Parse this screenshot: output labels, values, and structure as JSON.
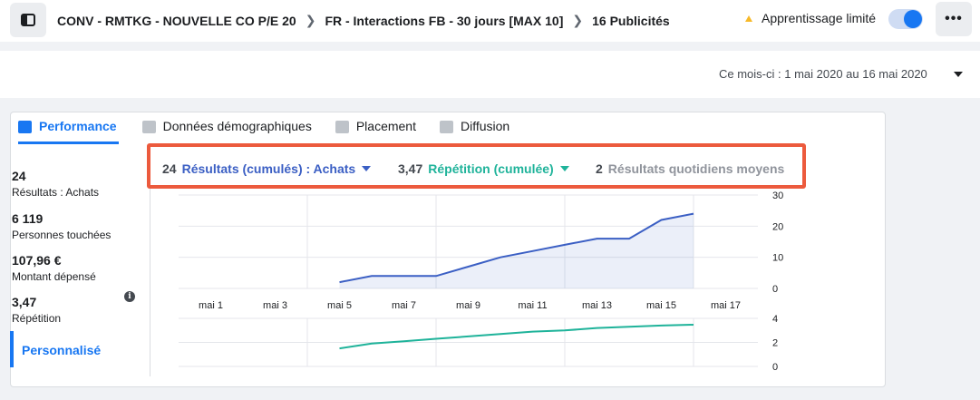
{
  "breadcrumb": {
    "campaign": "CONV - RMTKG - NOUVELLE CO P/E 20",
    "adset": "FR - Interactions FB - 30 jours [MAX 10]",
    "ads": "16 Publicités"
  },
  "header": {
    "status": "Apprentissage limité"
  },
  "date_range": "Ce mois-ci : 1 mai 2020 au 16 mai 2020",
  "tabs": [
    {
      "label": "Performance"
    },
    {
      "label": "Données démographiques"
    },
    {
      "label": "Placement"
    },
    {
      "label": "Diffusion"
    }
  ],
  "sidebar": {
    "metrics": [
      {
        "value": "24",
        "label": "Résultats : Achats"
      },
      {
        "value": "6 119",
        "label": "Personnes touchées"
      },
      {
        "value": "107,96 €",
        "label": "Montant dépensé"
      },
      {
        "value": "3,47",
        "label": "Répétition"
      }
    ],
    "custom_label": "Personnalisé"
  },
  "results_bar": {
    "results": {
      "value": "24",
      "label": "Résultats (cumulés) : Achats",
      "color": "#3b5fc4"
    },
    "repetition": {
      "value": "3,47",
      "label": "Répétition (cumulée)",
      "color": "#1fb39a"
    },
    "daily": {
      "value": "2",
      "label": "Résultats quotidiens moyens",
      "color": "#90949c"
    }
  },
  "chart_data": [
    {
      "type": "area",
      "x": [
        "mai 5",
        "mai 6",
        "mai 7",
        "mai 8",
        "mai 9",
        "mai 10",
        "mai 11",
        "mai 12",
        "mai 13",
        "mai 14",
        "mai 15",
        "mai 16"
      ],
      "series": [
        {
          "name": "Résultats (cumulés) : Achats",
          "color": "#3b5fc4",
          "values": [
            2,
            4,
            4,
            4,
            7,
            10,
            12,
            14,
            16,
            16,
            22,
            24
          ]
        }
      ],
      "xticks": [
        "mai 1",
        "mai 3",
        "mai 5",
        "mai 7",
        "mai 9",
        "mai 11",
        "mai 13",
        "mai 15",
        "mai 17"
      ],
      "yticks": [
        "0",
        "10",
        "20",
        "30"
      ],
      "ylim": [
        0,
        30
      ],
      "grid": true
    },
    {
      "type": "line",
      "x": [
        "mai 5",
        "mai 6",
        "mai 7",
        "mai 8",
        "mai 9",
        "mai 10",
        "mai 11",
        "mai 12",
        "mai 13",
        "mai 14",
        "mai 15",
        "mai 16"
      ],
      "series": [
        {
          "name": "Répétition (cumulée)",
          "color": "#1fb39a",
          "values": [
            1.5,
            1.9,
            2.1,
            2.3,
            2.5,
            2.7,
            2.9,
            3.0,
            3.2,
            3.3,
            3.4,
            3.47
          ]
        }
      ],
      "yticks": [
        "0",
        "2",
        "4"
      ],
      "ylim": [
        0,
        4
      ],
      "grid": true
    }
  ]
}
